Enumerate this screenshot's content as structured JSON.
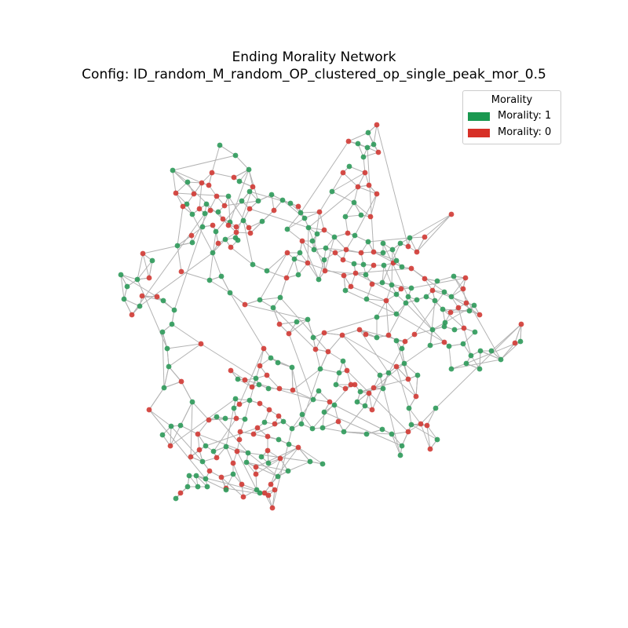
{
  "figure": {
    "title_line1": "Ending Morality Network",
    "title_line2": "Config: ID_random_M_random_OP_clustered_op_single_peak_mor_0.5"
  },
  "legend": {
    "title": "Morality",
    "items": [
      {
        "label": "Morality: 1",
        "color": "#1a9850"
      },
      {
        "label": "Morality: 0",
        "color": "#d73027"
      }
    ]
  },
  "colors": {
    "morality_1": "#2e9a5a",
    "morality_0": "#d23a34",
    "edge": "#b3b3b3",
    "legend_border": "#cccccc"
  }
}
